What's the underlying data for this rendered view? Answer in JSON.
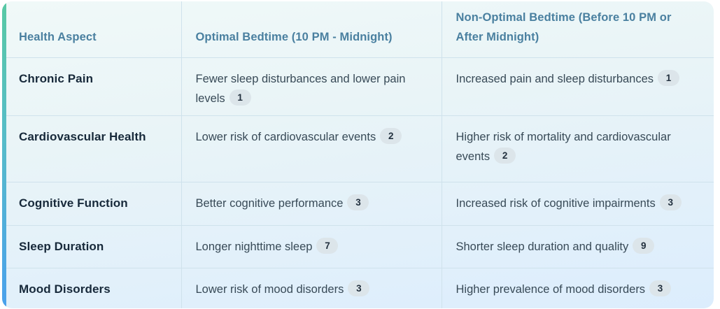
{
  "colors": {
    "accent_bar_top": "#58c9a4",
    "accent_bar_bottom": "#4aa0ec",
    "card_bg_top": "#f0f9f8",
    "card_bg_bottom": "#dcedfd",
    "header_text": "#4a80a0",
    "aspect_text": "#17293a",
    "cell_text": "#384a57",
    "divider": "#cfe2ec",
    "badge_bg": "#dce5ea",
    "badge_text": "#22303e"
  },
  "table": {
    "columns": [
      "Health Aspect",
      "Optimal Bedtime (10 PM - Midnight)",
      "Non-Optimal Bedtime (Before 10 PM or After Midnight)"
    ],
    "rows": [
      {
        "aspect": "Chronic Pain",
        "optimal": "Fewer sleep disturbances and lower pain levels",
        "optimal_badge": "1",
        "nonoptimal": "Increased pain and sleep disturbances",
        "nonoptimal_badge": "1"
      },
      {
        "aspect": "Cardiovascular Health",
        "optimal": "Lower risk of cardiovascular events",
        "optimal_badge": "2",
        "nonoptimal": "Higher risk of mortality and cardiovascular events",
        "nonoptimal_badge": "2"
      },
      {
        "aspect": "Cognitive Function",
        "optimal": "Better cognitive performance",
        "optimal_badge": "3",
        "nonoptimal": "Increased risk of cognitive impairments",
        "nonoptimal_badge": "3"
      },
      {
        "aspect": "Sleep Duration",
        "optimal": "Longer nighttime sleep",
        "optimal_badge": "7",
        "nonoptimal": "Shorter sleep duration and quality",
        "nonoptimal_badge": "9"
      },
      {
        "aspect": "Mood Disorders",
        "optimal": "Lower risk of mood disorders",
        "optimal_badge": "3",
        "nonoptimal": "Higher prevalence of mood disorders",
        "nonoptimal_badge": "3"
      }
    ]
  },
  "chart_data": {
    "type": "table",
    "title": "",
    "columns": [
      "Health Aspect",
      "Optimal Bedtime (10 PM - Midnight)",
      "Non-Optimal Bedtime (Before 10 PM or After Midnight)"
    ],
    "rows": [
      [
        "Chronic Pain",
        "Fewer sleep disturbances and lower pain levels [1]",
        "Increased pain and sleep disturbances [1]"
      ],
      [
        "Cardiovascular Health",
        "Lower risk of cardiovascular events [2]",
        "Higher risk of mortality and cardiovascular events [2]"
      ],
      [
        "Cognitive Function",
        "Better cognitive performance [3]",
        "Increased risk of cognitive impairments [3]"
      ],
      [
        "Sleep Duration",
        "Longer nighttime sleep [7]",
        "Shorter sleep duration and quality [9]"
      ],
      [
        "Mood Disorders",
        "Lower risk of mood disorders [3]",
        "Higher prevalence of mood disorders [3]"
      ]
    ]
  }
}
